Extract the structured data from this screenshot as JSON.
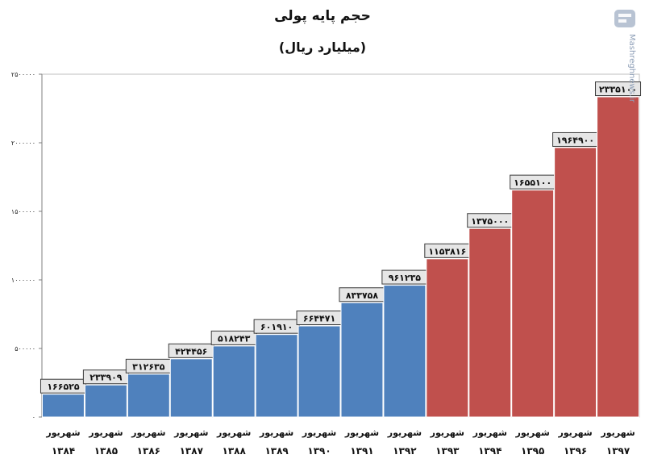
{
  "chart_data": {
    "type": "bar",
    "title": "حجم پایه پولی",
    "subtitle": "(میلیارد ریال)",
    "categories": [
      [
        "شهریور",
        "۱۳۸۴"
      ],
      [
        "شهریور",
        "۱۳۸۵"
      ],
      [
        "شهریور",
        "۱۳۸۶"
      ],
      [
        "شهریور",
        "۱۳۸۷"
      ],
      [
        "شهریور",
        "۱۳۸۸"
      ],
      [
        "شهریور",
        "۱۳۸۹"
      ],
      [
        "شهریور",
        "۱۳۹۰"
      ],
      [
        "شهریور",
        "۱۳۹۱"
      ],
      [
        "شهریور",
        "۱۳۹۲"
      ],
      [
        "شهریور",
        "۱۳۹۳"
      ],
      [
        "شهریور",
        "۱۳۹۴"
      ],
      [
        "شهریور",
        "۱۳۹۵"
      ],
      [
        "شهریور",
        "۱۳۹۶"
      ],
      [
        "شهریور",
        "۱۳۹۷"
      ]
    ],
    "values": [
      166525,
      233909,
      312635,
      424456,
      518243,
      601910,
      664471,
      833758,
      961235,
      1153816,
      1375000,
      1655100,
      1964900,
      2335100
    ],
    "value_labels": [
      "۱۶۶۵۲۵",
      "۲۳۳۹۰۹",
      "۳۱۲۶۳۵",
      "۴۲۴۴۵۶",
      "۵۱۸۲۴۳",
      "۶۰۱۹۱۰",
      "۶۶۴۴۷۱",
      "۸۳۳۷۵۸",
      "۹۶۱۲۳۵",
      "۱۱۵۳۸۱۶",
      "۱۳۷۵۰۰۰",
      "۱۶۵۵۱۰۰",
      "۱۹۶۴۹۰۰",
      "۲۳۳۵۱۰۰"
    ],
    "bar_colors": [
      "#4f81bd",
      "#4f81bd",
      "#4f81bd",
      "#4f81bd",
      "#4f81bd",
      "#4f81bd",
      "#4f81bd",
      "#4f81bd",
      "#4f81bd",
      "#c0504d",
      "#c0504d",
      "#c0504d",
      "#c0504d",
      "#c0504d"
    ],
    "yticks": [
      0,
      500000,
      1000000,
      1500000,
      2000000,
      2500000
    ],
    "ytick_labels": [
      "۰",
      "۵۰۰۰۰۰",
      "۱۰۰۰۰۰۰",
      "۱۵۰۰۰۰۰",
      "۲۰۰۰۰۰۰",
      "۲۵۰۰۰۰۰"
    ],
    "ylim": [
      0,
      2500000
    ],
    "grid": false,
    "xlabel": "",
    "ylabel": ""
  },
  "watermark": {
    "text": "Mashreghnews.ir",
    "color": "#8fa0b8"
  }
}
